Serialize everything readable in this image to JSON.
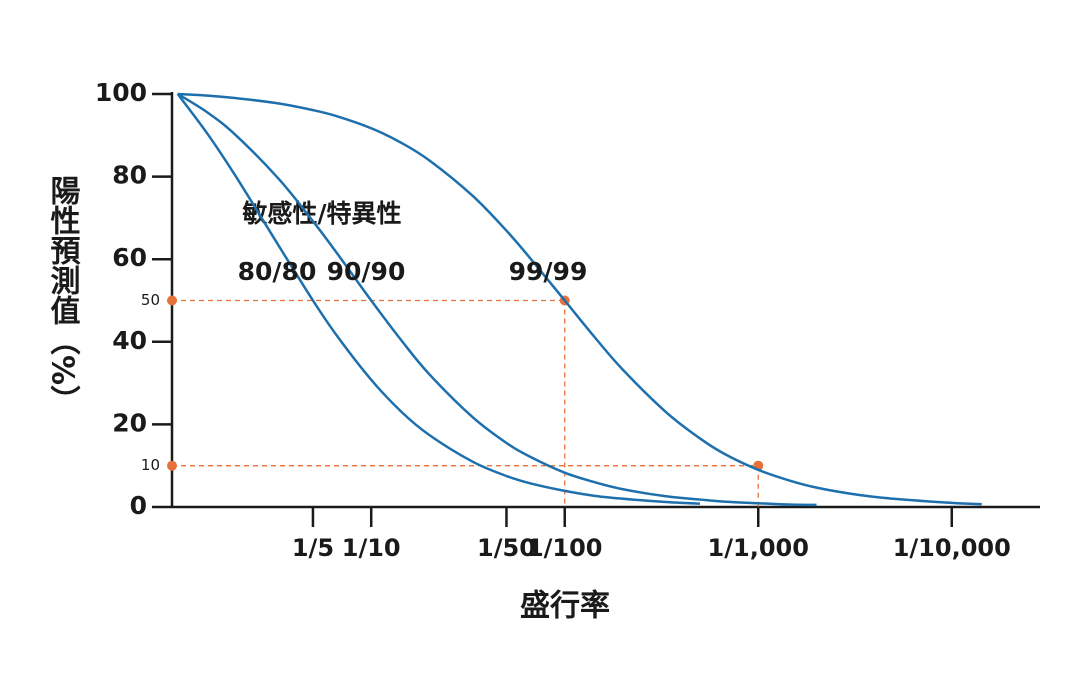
{
  "chart_data": {
    "type": "line",
    "y_label": "陽性預測值（%）",
    "x_label": "盛行率",
    "annotation": "敏感性/特異性",
    "xscale": "log",
    "xlim": [
      1.07,
      3.5e-05
    ],
    "xticks": [
      {
        "value": 0.2,
        "label": "1/5"
      },
      {
        "value": 0.1,
        "label": "1/10"
      },
      {
        "value": 0.02,
        "label": "1/50"
      },
      {
        "value": 0.01,
        "label": "1/100"
      },
      {
        "value": 0.001,
        "label": "1/1,000"
      },
      {
        "value": 0.0001,
        "label": "1/10,000"
      }
    ],
    "ylim": [
      0,
      100
    ],
    "yticks": [
      0,
      20,
      40,
      60,
      80,
      100
    ],
    "reference_points": [
      {
        "x": 0.01,
        "y": 50
      },
      {
        "x": 0.001,
        "y": 10
      }
    ],
    "reference_color": "#e8703a",
    "series": [
      {
        "name": "80/80",
        "color": "#1d70ad",
        "x": [
          1,
          0.7,
          0.5,
          0.3,
          0.2,
          0.15,
          0.1,
          0.07,
          0.05,
          0.03,
          0.02,
          0.015,
          0.01,
          0.007,
          0.005,
          0.003,
          0.002
        ],
        "values": [
          100,
          90.3,
          80,
          63.2,
          50,
          41.4,
          30.8,
          23.1,
          17.4,
          11.0,
          7.5,
          5.7,
          3.9,
          2.7,
          2.0,
          1.2,
          0.8
        ]
      },
      {
        "name": "90/90",
        "color": "#1d70ad",
        "x": [
          1,
          0.7,
          0.5,
          0.3,
          0.2,
          0.15,
          0.1,
          0.07,
          0.05,
          0.03,
          0.02,
          0.015,
          0.01,
          0.007,
          0.005,
          0.003,
          0.002,
          0.0015,
          0.001,
          0.0007,
          0.0005
        ],
        "values": [
          100,
          95.5,
          90,
          79.4,
          69.2,
          61.4,
          50,
          40.4,
          32.1,
          21.8,
          15.5,
          12.1,
          8.3,
          6.0,
          4.3,
          2.6,
          1.8,
          1.3,
          0.9,
          0.6,
          0.5
        ]
      },
      {
        "name": "99/99",
        "color": "#1d70ad",
        "x": [
          1,
          0.7,
          0.5,
          0.3,
          0.2,
          0.15,
          0.1,
          0.07,
          0.05,
          0.03,
          0.02,
          0.015,
          0.01,
          0.007,
          0.005,
          0.003,
          0.002,
          0.0015,
          0.001,
          0.0007,
          0.0005,
          0.0003,
          0.0002,
          0.0001,
          7e-05
        ],
        "values": [
          100,
          99.6,
          99.0,
          97.7,
          96.1,
          94.6,
          91.7,
          88.2,
          83.9,
          75.4,
          66.9,
          60.1,
          50,
          41.1,
          33.2,
          23.0,
          16.6,
          12.9,
          9.0,
          6.5,
          4.7,
          2.9,
          2.0,
          1.0,
          0.7
        ]
      }
    ]
  }
}
